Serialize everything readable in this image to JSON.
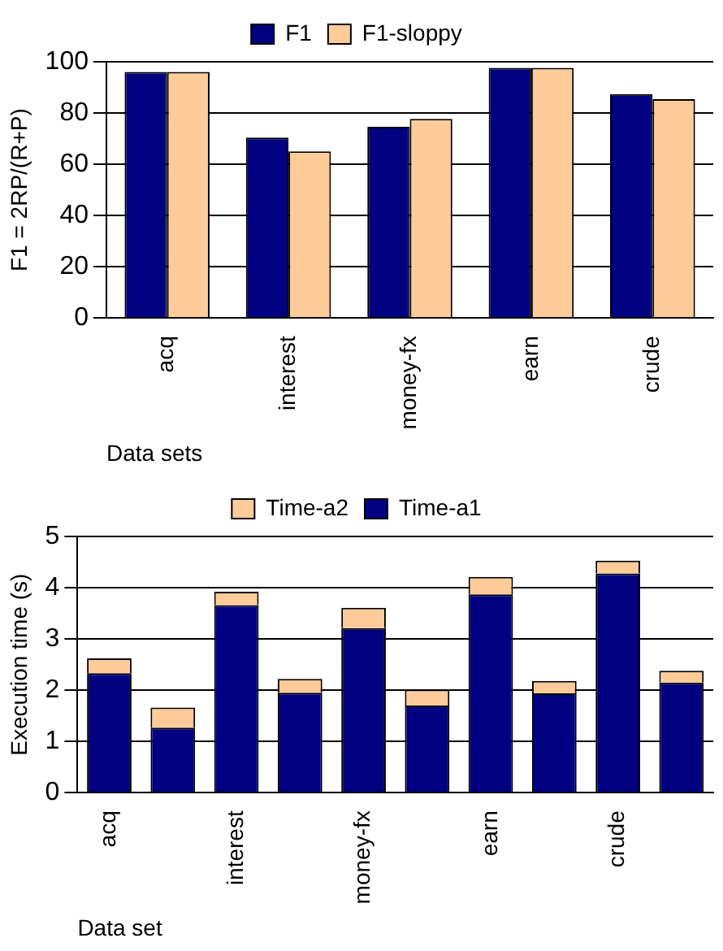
{
  "chart_data": [
    {
      "type": "bar",
      "ylabel": "F1 = 2RP/(R+P)",
      "xlabel": "Data sets",
      "categories": [
        "acq",
        "interest",
        "money-fx",
        "earn",
        "crude"
      ],
      "ylim": [
        0,
        100
      ],
      "yticks": [
        0,
        20,
        40,
        60,
        80,
        100
      ],
      "grid": "y",
      "legend": "top",
      "series": [
        {
          "name": "F1",
          "color": "#000080",
          "values": [
            96,
            70.4,
            74.6,
            97.6,
            87.4
          ]
        },
        {
          "name": "F1-sloppy",
          "color": "#ffcc99",
          "values": [
            96,
            65,
            77.7,
            97.6,
            85.4
          ]
        }
      ]
    },
    {
      "type": "bar",
      "stacked": true,
      "ylabel": "Execution time (s)",
      "xlabel": "Data set",
      "categories": [
        "acq",
        null,
        "interest",
        null,
        "money-fx",
        null,
        "earn",
        null,
        "crude",
        null
      ],
      "ylim": [
        0,
        5
      ],
      "yticks": [
        0,
        1,
        2,
        3,
        4,
        5
      ],
      "grid": "y",
      "legend": "top",
      "series": [
        {
          "name": "Time-a1",
          "color": "#000080",
          "values": [
            2.33,
            1.27,
            3.66,
            1.95,
            3.21,
            1.7,
            3.87,
            1.94,
            4.28,
            2.15
          ]
        },
        {
          "name": "Time-a2",
          "color": "#ffcc99",
          "values": [
            0.29,
            0.39,
            0.26,
            0.27,
            0.4,
            0.31,
            0.34,
            0.24,
            0.25,
            0.23
          ]
        }
      ]
    }
  ]
}
